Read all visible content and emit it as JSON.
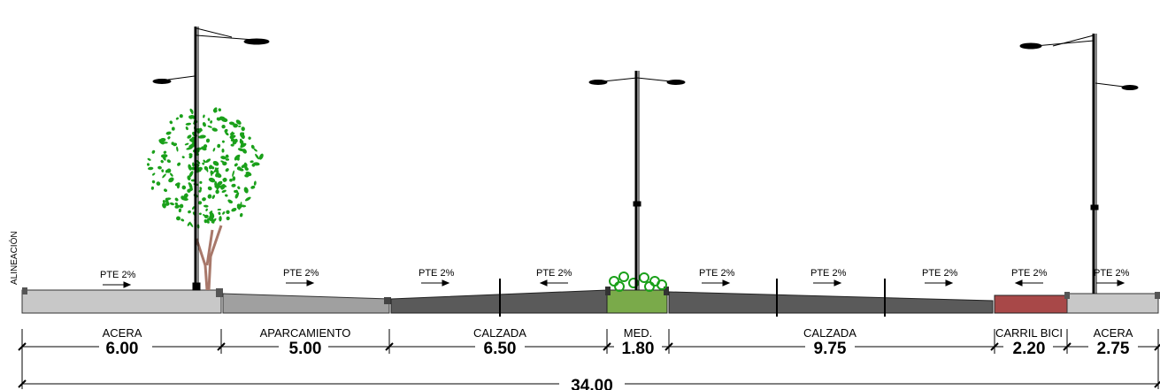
{
  "diagram": {
    "alineacion_label": "ALINEACIÓN",
    "slope_label": "PTE 2%",
    "segments": [
      {
        "name": "ACERA",
        "width": "6.00",
        "color": "#c8c8c8"
      },
      {
        "name": "APARCAMIENTO",
        "width": "5.00",
        "color": "#a0a0a0"
      },
      {
        "name": "CALZADA",
        "width": "6.50",
        "color": "#5a5a5a"
      },
      {
        "name": "MED.",
        "width": "1.80",
        "color": "#7aaa4a"
      },
      {
        "name": "CALZADA",
        "width": "9.75",
        "color": "#5a5a5a"
      },
      {
        "name": "CARRIL BICI",
        "width": "2.20",
        "color": "#a84848"
      },
      {
        "name": "ACERA",
        "width": "2.75",
        "color": "#c8c8c8"
      }
    ],
    "total_width": "34.00",
    "tree_color": "#1aa01a",
    "slopes": [
      {
        "label": "PTE 2%",
        "direction": "right"
      },
      {
        "label": "PTE 2%",
        "direction": "right"
      },
      {
        "label": "PTE 2%",
        "direction": "right"
      },
      {
        "label": "PTE 2%",
        "direction": "left"
      },
      {
        "label": "PTE 2%",
        "direction": "right"
      },
      {
        "label": "PTE 2%",
        "direction": "right"
      },
      {
        "label": "PTE 2%",
        "direction": "right"
      },
      {
        "label": "PTE 2%",
        "direction": "left"
      },
      {
        "label": "PTE 2%",
        "direction": "right"
      }
    ]
  }
}
